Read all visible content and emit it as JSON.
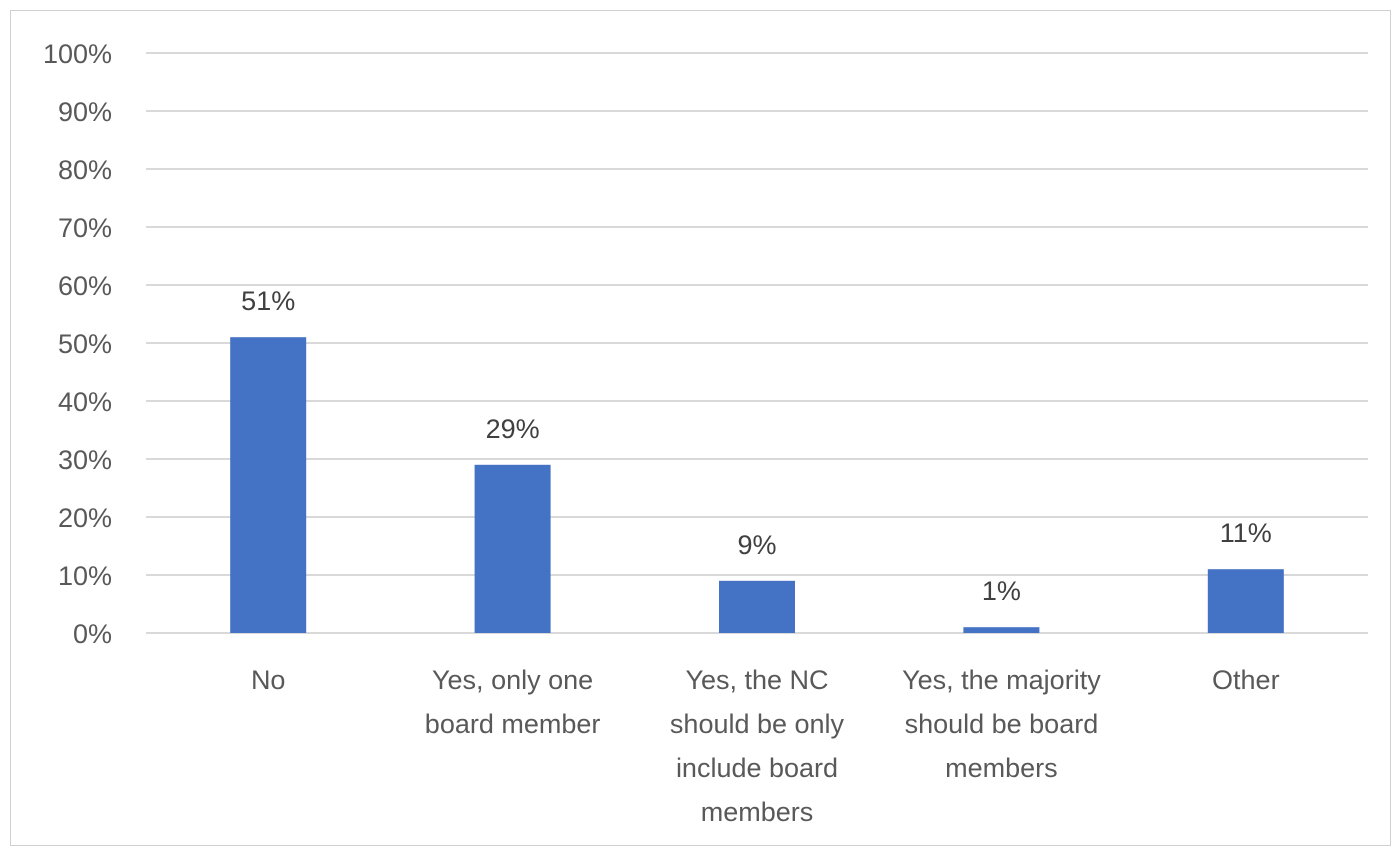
{
  "chart_data": {
    "type": "bar",
    "categories": [
      [
        "No"
      ],
      [
        "Yes, only one",
        "board member"
      ],
      [
        "Yes, the NC",
        "should be only",
        "include board",
        "members"
      ],
      [
        "Yes, the majority",
        "should be board",
        "members"
      ],
      [
        "Other"
      ]
    ],
    "values": [
      51,
      29,
      9,
      1,
      11
    ],
    "data_labels": [
      "51%",
      "29%",
      "9%",
      "1%",
      "11%"
    ],
    "y_ticks": [
      "0%",
      "10%",
      "20%",
      "30%",
      "40%",
      "50%",
      "60%",
      "70%",
      "80%",
      "90%",
      "100%"
    ],
    "ylim": [
      0,
      100
    ],
    "grid": true,
    "legend": "none",
    "bar_color": "#4472c4",
    "grid_color": "#d9d9d9"
  }
}
